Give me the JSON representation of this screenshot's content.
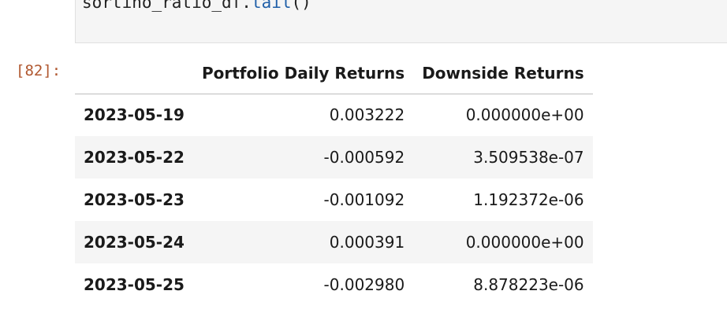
{
  "code_cell": {
    "object": "sortino_ratio_df",
    "dot": ".",
    "method": "tail",
    "parens": "()"
  },
  "output": {
    "prompt": "[82]:",
    "columns": [
      "Portfolio Daily Returns",
      "Downside Returns"
    ],
    "rows": [
      {
        "index": "2023-05-19",
        "values": [
          "0.003222",
          "0.000000e+00"
        ]
      },
      {
        "index": "2023-05-22",
        "values": [
          "-0.000592",
          "3.509538e-07"
        ]
      },
      {
        "index": "2023-05-23",
        "values": [
          "-0.001092",
          "1.192372e-06"
        ]
      },
      {
        "index": "2023-05-24",
        "values": [
          "0.000391",
          "0.000000e+00"
        ]
      },
      {
        "index": "2023-05-25",
        "values": [
          "-0.002980",
          "8.878223e-06"
        ]
      }
    ]
  }
}
